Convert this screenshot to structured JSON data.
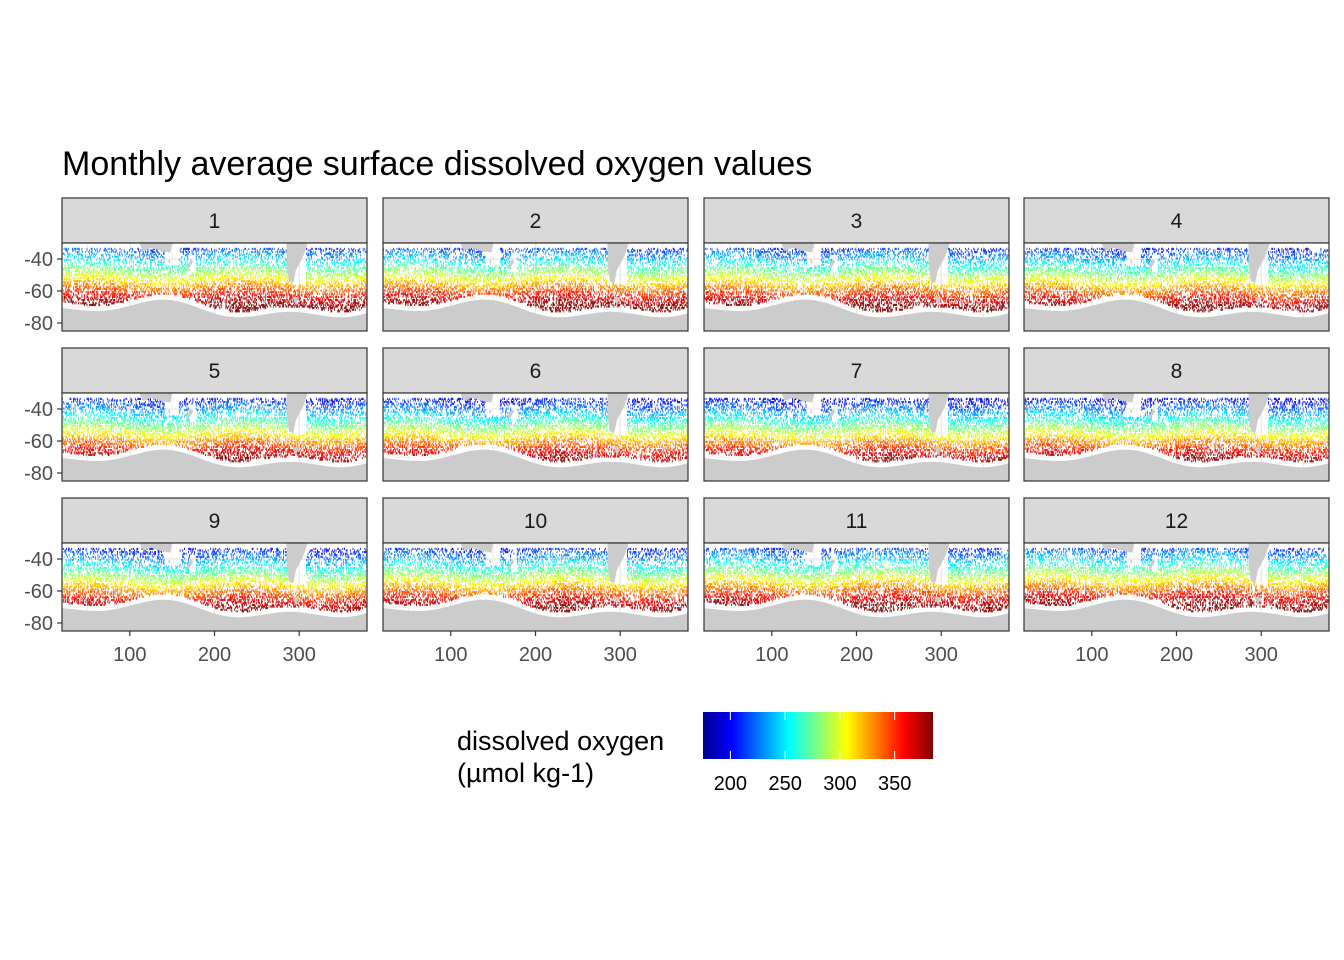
{
  "chart_data": {
    "type": "heatmap",
    "title": "Monthly average surface dissolved oxygen values",
    "xlabel": "",
    "ylabel": "",
    "facets": [
      "1",
      "2",
      "3",
      "4",
      "5",
      "6",
      "7",
      "8",
      "9",
      "10",
      "11",
      "12"
    ],
    "facet_layout": {
      "rows": 3,
      "cols": 4
    },
    "x_ticks": [
      100,
      200,
      300
    ],
    "x_tick_labels": [
      "100",
      "200",
      "300"
    ],
    "y_ticks": [
      -40,
      -60,
      -80
    ],
    "y_tick_labels": [
      "-40",
      "-60",
      "-80"
    ],
    "xlim": [
      20,
      380
    ],
    "ylim": [
      -85,
      -30
    ],
    "grid": true,
    "legend": {
      "title_line1": "dissolved oxygen",
      "title_line2": "(µmol kg-1)",
      "position": "bottom",
      "range": [
        175,
        385
      ],
      "ticks": [
        200,
        250,
        300,
        350
      ],
      "tick_labels": [
        "200",
        "250",
        "300",
        "350"
      ],
      "palette": [
        "#00008F",
        "#0000FF",
        "#0080FF",
        "#00FFFF",
        "#80FF80",
        "#FFFF00",
        "#FF8000",
        "#FF0000",
        "#800000"
      ]
    },
    "value_gradient": {
      "description": "Oxygen increases from north to south",
      "lat_at_low_value": -30,
      "lat_at_high_value": -68,
      "value_low": 190,
      "value_high": 375
    }
  },
  "colors": {
    "panel_background": "#ffffff",
    "land": "#cccccc",
    "strip_background": "#d9d9d9",
    "border": "#333333",
    "grid": "#ebebeb"
  }
}
